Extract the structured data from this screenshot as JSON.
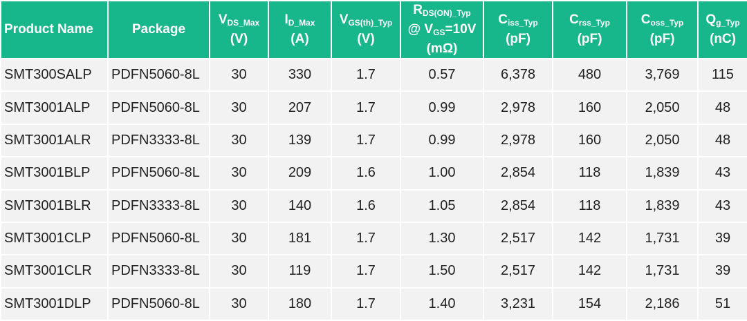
{
  "header": {
    "product_name": "Product Name",
    "package": "Package",
    "vds": {
      "symbol": "V",
      "subscript": "DS_Max",
      "unit": "(V)"
    },
    "id": {
      "symbol": "I",
      "subscript": "D_Max",
      "unit": "(A)"
    },
    "vgs": {
      "symbol": "V",
      "subscript": "GS(th)_Typ",
      "unit": "(V)"
    },
    "rds": {
      "symbol": "R",
      "subscript": "DS(ON)_Typ",
      "condition_prefix": "@ V",
      "condition_subscript": "GS",
      "condition_suffix": "=10V",
      "unit": "(mΩ)"
    },
    "ciss": {
      "symbol": "C",
      "subscript": "iss_Typ",
      "unit": "(pF)"
    },
    "crss": {
      "symbol": "C",
      "subscript": "rss_Typ",
      "unit": "(pF)"
    },
    "coss": {
      "symbol": "C",
      "subscript": "oss_Typ",
      "unit": "(pF)"
    },
    "qg": {
      "symbol": "Q",
      "subscript": "g_Typ",
      "unit": "(nC)"
    }
  },
  "table": {
    "rows": [
      [
        "SMT300SALP",
        "PDFN5060-8L",
        "30",
        "330",
        "1.7",
        "0.57",
        "6,378",
        "480",
        "3,769",
        "115"
      ],
      [
        "SMT3001ALP",
        "PDFN5060-8L",
        "30",
        "207",
        "1.7",
        "0.99",
        "2,978",
        "160",
        "2,050",
        "48"
      ],
      [
        "SMT3001ALR",
        "PDFN3333-8L",
        "30",
        "139",
        "1.7",
        "0.99",
        "2,978",
        "160",
        "2,050",
        "48"
      ],
      [
        "SMT3001BLP",
        "PDFN5060-8L",
        "30",
        "209",
        "1.6",
        "1.00",
        "2,854",
        "118",
        "1,839",
        "43"
      ],
      [
        "SMT3001BLR",
        "PDFN3333-8L",
        "30",
        "140",
        "1.6",
        "1.05",
        "2,854",
        "118",
        "1,839",
        "43"
      ],
      [
        "SMT3001CLP",
        "PDFN5060-8L",
        "30",
        "181",
        "1.7",
        "1.30",
        "2,517",
        "142",
        "1,731",
        "39"
      ],
      [
        "SMT3001CLR",
        "PDFN3333-8L",
        "30",
        "119",
        "1.7",
        "1.50",
        "2,517",
        "142",
        "1,731",
        "39"
      ],
      [
        "SMT3001DLP",
        "PDFN5060-8L",
        "30",
        "180",
        "1.7",
        "1.40",
        "3,231",
        "154",
        "2,186",
        "51"
      ]
    ]
  }
}
